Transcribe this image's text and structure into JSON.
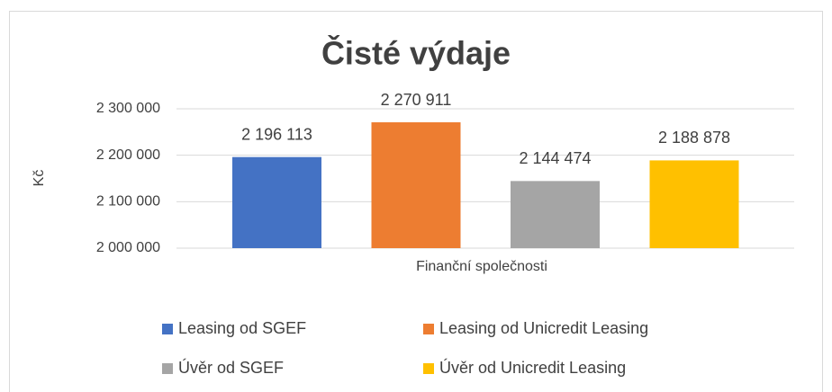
{
  "chart_data": {
    "type": "bar",
    "title": "Čisté výdaje",
    "y_label": "Kč",
    "categories": [
      "Finanční společnosti"
    ],
    "series": [
      {
        "name": "Leasing od SGEF",
        "color": "#4472c4",
        "values": [
          2196113
        ],
        "value_labels": [
          "2 196 113"
        ]
      },
      {
        "name": "Leasing od Unicredit Leasing",
        "color": "#ed7d31",
        "values": [
          2270911
        ],
        "value_labels": [
          "2 270 911"
        ]
      },
      {
        "name": "Úvěr od SGEF",
        "color": "#a5a5a5",
        "values": [
          2144474
        ],
        "value_labels": [
          "2 144 474"
        ]
      },
      {
        "name": "Úvěr od Unicredit Leasing",
        "color": "#ffc000",
        "values": [
          2188878
        ],
        "value_labels": [
          "2 188 878"
        ]
      }
    ],
    "ylim": [
      2000000,
      2300000
    ],
    "yticks": [
      {
        "value": 2000000,
        "label": "2 000 000"
      },
      {
        "value": 2100000,
        "label": "2 100 000"
      },
      {
        "value": 2200000,
        "label": "2 200 000"
      },
      {
        "value": 2300000,
        "label": "2 300 000"
      }
    ],
    "grid": true,
    "legend": "bottom"
  }
}
